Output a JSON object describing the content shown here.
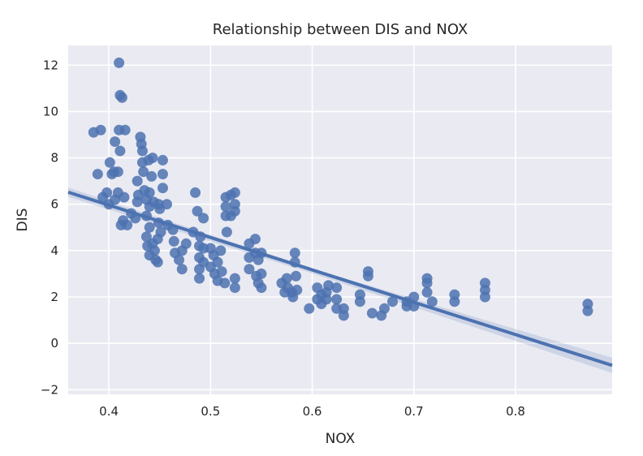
{
  "chart_data": {
    "type": "scatter",
    "title": "Relationship between DIS and NOX",
    "xlabel": "NOX",
    "ylabel": "DIS",
    "xlim": [
      0.36,
      0.895
    ],
    "ylim": [
      -2.2,
      12.85
    ],
    "x_ticks": [
      0.4,
      0.5,
      0.6,
      0.7,
      0.8
    ],
    "x_tick_labels": [
      "0.4",
      "0.5",
      "0.6",
      "0.7",
      "0.8"
    ],
    "y_ticks": [
      -2,
      0,
      2,
      4,
      6,
      8,
      10,
      12
    ],
    "y_tick_labels": [
      "−2",
      "0",
      "2",
      "4",
      "6",
      "8",
      "10",
      "12"
    ],
    "grid": true,
    "style": "seaborn darkgrid",
    "colors": {
      "background": "#eaeaf2",
      "grid": "#ffffff",
      "points": "#4c72b0",
      "band": "#4c72b0"
    },
    "regression_line": {
      "x": [
        0.36,
        0.895
      ],
      "y": [
        6.52,
        -0.95
      ]
    },
    "confidence_band": {
      "x": [
        0.36,
        0.6,
        0.895
      ],
      "upper": [
        6.72,
        3.22,
        -0.62
      ],
      "lower": [
        6.32,
        3.02,
        -1.28
      ]
    },
    "points": [
      {
        "x": 0.385,
        "y": 9.1
      },
      {
        "x": 0.392,
        "y": 9.2
      },
      {
        "x": 0.389,
        "y": 7.3
      },
      {
        "x": 0.394,
        "y": 6.3
      },
      {
        "x": 0.398,
        "y": 6.5
      },
      {
        "x": 0.4,
        "y": 6.0
      },
      {
        "x": 0.401,
        "y": 7.8
      },
      {
        "x": 0.403,
        "y": 7.3
      },
      {
        "x": 0.405,
        "y": 7.4
      },
      {
        "x": 0.406,
        "y": 6.2
      },
      {
        "x": 0.406,
        "y": 8.7
      },
      {
        "x": 0.409,
        "y": 6.5
      },
      {
        "x": 0.409,
        "y": 7.4
      },
      {
        "x": 0.41,
        "y": 12.1
      },
      {
        "x": 0.411,
        "y": 10.7
      },
      {
        "x": 0.413,
        "y": 10.6
      },
      {
        "x": 0.41,
        "y": 9.2
      },
      {
        "x": 0.416,
        "y": 9.2
      },
      {
        "x": 0.411,
        "y": 8.3
      },
      {
        "x": 0.412,
        "y": 5.1
      },
      {
        "x": 0.414,
        "y": 5.3
      },
      {
        "x": 0.418,
        "y": 5.1
      },
      {
        "x": 0.415,
        "y": 6.3
      },
      {
        "x": 0.422,
        "y": 5.6
      },
      {
        "x": 0.426,
        "y": 5.4
      },
      {
        "x": 0.428,
        "y": 6.1
      },
      {
        "x": 0.429,
        "y": 6.4
      },
      {
        "x": 0.428,
        "y": 7.0
      },
      {
        "x": 0.431,
        "y": 8.9
      },
      {
        "x": 0.432,
        "y": 8.6
      },
      {
        "x": 0.433,
        "y": 8.3
      },
      {
        "x": 0.433,
        "y": 7.8
      },
      {
        "x": 0.434,
        "y": 7.4
      },
      {
        "x": 0.435,
        "y": 6.6
      },
      {
        "x": 0.437,
        "y": 6.2
      },
      {
        "x": 0.437,
        "y": 5.5
      },
      {
        "x": 0.439,
        "y": 7.9
      },
      {
        "x": 0.44,
        "y": 6.5
      },
      {
        "x": 0.44,
        "y": 5.9
      },
      {
        "x": 0.44,
        "y": 5.0
      },
      {
        "x": 0.437,
        "y": 4.6
      },
      {
        "x": 0.438,
        "y": 4.2
      },
      {
        "x": 0.44,
        "y": 3.8
      },
      {
        "x": 0.443,
        "y": 4.3
      },
      {
        "x": 0.445,
        "y": 4.0
      },
      {
        "x": 0.446,
        "y": 3.6
      },
      {
        "x": 0.448,
        "y": 3.5
      },
      {
        "x": 0.448,
        "y": 4.5
      },
      {
        "x": 0.449,
        "y": 5.2
      },
      {
        "x": 0.45,
        "y": 5.8
      },
      {
        "x": 0.451,
        "y": 4.8
      },
      {
        "x": 0.449,
        "y": 6.0
      },
      {
        "x": 0.444,
        "y": 6.1
      },
      {
        "x": 0.442,
        "y": 7.2
      },
      {
        "x": 0.443,
        "y": 8.0
      },
      {
        "x": 0.453,
        "y": 7.9
      },
      {
        "x": 0.453,
        "y": 7.3
      },
      {
        "x": 0.453,
        "y": 6.7
      },
      {
        "x": 0.457,
        "y": 6.0
      },
      {
        "x": 0.458,
        "y": 5.1
      },
      {
        "x": 0.463,
        "y": 4.9
      },
      {
        "x": 0.464,
        "y": 4.4
      },
      {
        "x": 0.465,
        "y": 3.9
      },
      {
        "x": 0.469,
        "y": 3.6
      },
      {
        "x": 0.472,
        "y": 3.2
      },
      {
        "x": 0.472,
        "y": 4.0
      },
      {
        "x": 0.476,
        "y": 4.3
      },
      {
        "x": 0.483,
        "y": 4.8
      },
      {
        "x": 0.485,
        "y": 6.5
      },
      {
        "x": 0.487,
        "y": 5.7
      },
      {
        "x": 0.489,
        "y": 4.2
      },
      {
        "x": 0.489,
        "y": 3.7
      },
      {
        "x": 0.489,
        "y": 3.2
      },
      {
        "x": 0.489,
        "y": 2.8
      },
      {
        "x": 0.49,
        "y": 4.6
      },
      {
        "x": 0.493,
        "y": 5.4
      },
      {
        "x": 0.493,
        "y": 4.1
      },
      {
        "x": 0.493,
        "y": 3.5
      },
      {
        "x": 0.5,
        "y": 4.1
      },
      {
        "x": 0.5,
        "y": 3.3
      },
      {
        "x": 0.503,
        "y": 3.8
      },
      {
        "x": 0.504,
        "y": 3.0
      },
      {
        "x": 0.507,
        "y": 3.5
      },
      {
        "x": 0.507,
        "y": 2.7
      },
      {
        "x": 0.51,
        "y": 4.0
      },
      {
        "x": 0.511,
        "y": 3.1
      },
      {
        "x": 0.514,
        "y": 2.6
      },
      {
        "x": 0.515,
        "y": 6.3
      },
      {
        "x": 0.515,
        "y": 5.9
      },
      {
        "x": 0.515,
        "y": 5.5
      },
      {
        "x": 0.516,
        "y": 4.8
      },
      {
        "x": 0.52,
        "y": 6.4
      },
      {
        "x": 0.52,
        "y": 5.5
      },
      {
        "x": 0.524,
        "y": 6.5
      },
      {
        "x": 0.524,
        "y": 6.0
      },
      {
        "x": 0.524,
        "y": 5.7
      },
      {
        "x": 0.524,
        "y": 2.8
      },
      {
        "x": 0.524,
        "y": 2.4
      },
      {
        "x": 0.538,
        "y": 3.7
      },
      {
        "x": 0.538,
        "y": 3.2
      },
      {
        "x": 0.538,
        "y": 4.3
      },
      {
        "x": 0.544,
        "y": 4.5
      },
      {
        "x": 0.544,
        "y": 3.9
      },
      {
        "x": 0.545,
        "y": 2.9
      },
      {
        "x": 0.547,
        "y": 3.6
      },
      {
        "x": 0.547,
        "y": 2.6
      },
      {
        "x": 0.55,
        "y": 3.9
      },
      {
        "x": 0.55,
        "y": 3.0
      },
      {
        "x": 0.55,
        "y": 2.4
      },
      {
        "x": 0.57,
        "y": 2.6
      },
      {
        "x": 0.573,
        "y": 2.2
      },
      {
        "x": 0.575,
        "y": 2.8
      },
      {
        "x": 0.576,
        "y": 2.4
      },
      {
        "x": 0.58,
        "y": 2.2
      },
      {
        "x": 0.581,
        "y": 2.0
      },
      {
        "x": 0.583,
        "y": 3.9
      },
      {
        "x": 0.583,
        "y": 3.5
      },
      {
        "x": 0.584,
        "y": 2.9
      },
      {
        "x": 0.585,
        "y": 2.3
      },
      {
        "x": 0.597,
        "y": 1.5
      },
      {
        "x": 0.605,
        "y": 2.4
      },
      {
        "x": 0.605,
        "y": 1.9
      },
      {
        "x": 0.609,
        "y": 2.1
      },
      {
        "x": 0.609,
        "y": 1.7
      },
      {
        "x": 0.614,
        "y": 2.2
      },
      {
        "x": 0.614,
        "y": 1.9
      },
      {
        "x": 0.616,
        "y": 2.5
      },
      {
        "x": 0.624,
        "y": 2.4
      },
      {
        "x": 0.624,
        "y": 1.9
      },
      {
        "x": 0.624,
        "y": 1.5
      },
      {
        "x": 0.631,
        "y": 1.5
      },
      {
        "x": 0.631,
        "y": 1.2
      },
      {
        "x": 0.647,
        "y": 2.1
      },
      {
        "x": 0.647,
        "y": 1.8
      },
      {
        "x": 0.655,
        "y": 3.1
      },
      {
        "x": 0.655,
        "y": 2.9
      },
      {
        "x": 0.659,
        "y": 1.3
      },
      {
        "x": 0.668,
        "y": 1.2
      },
      {
        "x": 0.671,
        "y": 1.5
      },
      {
        "x": 0.679,
        "y": 1.8
      },
      {
        "x": 0.693,
        "y": 1.6
      },
      {
        "x": 0.693,
        "y": 1.8
      },
      {
        "x": 0.7,
        "y": 2.0
      },
      {
        "x": 0.7,
        "y": 1.6
      },
      {
        "x": 0.713,
        "y": 2.6
      },
      {
        "x": 0.713,
        "y": 2.2
      },
      {
        "x": 0.713,
        "y": 2.8
      },
      {
        "x": 0.718,
        "y": 1.8
      },
      {
        "x": 0.74,
        "y": 2.1
      },
      {
        "x": 0.74,
        "y": 1.8
      },
      {
        "x": 0.77,
        "y": 2.6
      },
      {
        "x": 0.77,
        "y": 2.3
      },
      {
        "x": 0.77,
        "y": 2.0
      },
      {
        "x": 0.871,
        "y": 1.7
      },
      {
        "x": 0.871,
        "y": 1.4
      }
    ]
  }
}
